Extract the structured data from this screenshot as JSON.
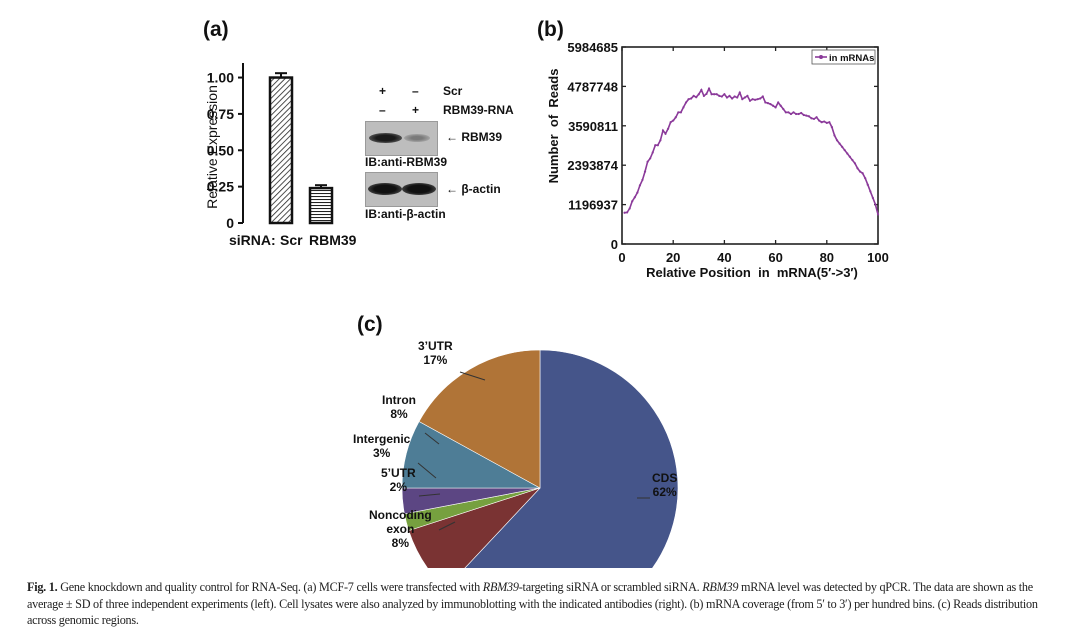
{
  "panels": {
    "a": {
      "label": "(a)",
      "bar_chart": {
        "type": "bar",
        "ylabel": "Relative Expression",
        "xlabel_prefix": "siRNA:",
        "categories": [
          "Scr",
          "RBM39"
        ],
        "values": [
          1.0,
          0.24
        ],
        "errors": [
          0.03,
          0.02
        ],
        "yticks": [
          "0",
          "0.25",
          "0.50",
          "0.75",
          "1.00"
        ],
        "ylim": [
          0,
          1.1
        ],
        "patterns": [
          "diagonal-hatch",
          "horizontal-hatch"
        ]
      },
      "western_blot": {
        "rows": [
          {
            "label": "Scr",
            "lanes": [
              "+",
              "–"
            ]
          },
          {
            "label": "RBM39-RNA",
            "lanes": [
              "–",
              "+"
            ]
          }
        ],
        "blots": [
          {
            "band_label": "← RBM39",
            "ib_label": "IB:anti-RBM39",
            "intensities": [
              1.0,
              0.25
            ]
          },
          {
            "band_label": "← β-actin",
            "ib_label": "IB:anti-β-actin",
            "intensities": [
              1.0,
              1.0
            ]
          }
        ]
      }
    },
    "b": {
      "label": "(b)"
    },
    "c": {
      "label": "(c)"
    }
  },
  "chart_data": [
    {
      "type": "bar",
      "title": "(a)",
      "xlabel": "siRNA: Scr RBM39",
      "ylabel": "Relative Expression",
      "categories": [
        "Scr",
        "RBM39"
      ],
      "values": [
        1.0,
        0.24
      ],
      "errors": [
        0.03,
        0.02
      ],
      "ylim": [
        0,
        1.1
      ],
      "yticks": [
        0,
        0.25,
        0.5,
        0.75,
        1.0
      ]
    },
    {
      "type": "line",
      "title": "(b)",
      "xlabel": "Relative Position  in  mRNA(5′->3′)",
      "ylabel": "Number  of  Reads",
      "xlim": [
        0,
        100
      ],
      "ylim": [
        0,
        5984685
      ],
      "xticks": [
        "0",
        "20",
        "40",
        "60",
        "80",
        "100"
      ],
      "yticks": [
        "0",
        "1196937",
        "2393874",
        "3590811",
        "4787748",
        "5984685"
      ],
      "legend": {
        "entries": [
          "in mRNAs"
        ],
        "placement": "top-right"
      },
      "grid": false,
      "series": [
        {
          "name": "in mRNAs",
          "color": "#8b3a9a",
          "x": [
            1,
            2,
            3,
            4,
            5,
            6,
            7,
            8,
            9,
            10,
            11,
            12,
            13,
            14,
            15,
            16,
            17,
            18,
            19,
            20,
            21,
            22,
            23,
            24,
            25,
            26,
            27,
            28,
            29,
            30,
            31,
            32,
            33,
            34,
            35,
            36,
            37,
            38,
            39,
            40,
            41,
            42,
            43,
            44,
            45,
            46,
            47,
            48,
            49,
            50,
            51,
            52,
            53,
            54,
            55,
            56,
            57,
            58,
            59,
            60,
            61,
            62,
            63,
            64,
            65,
            66,
            67,
            68,
            69,
            70,
            71,
            72,
            73,
            74,
            75,
            76,
            77,
            78,
            79,
            80,
            81,
            82,
            83,
            84,
            85,
            86,
            87,
            88,
            89,
            90,
            91,
            92,
            93,
            94,
            95,
            96,
            97,
            98,
            99,
            100
          ],
          "y": [
            950000,
            960000,
            1080000,
            1300000,
            1420000,
            1560000,
            1780000,
            1950000,
            2200000,
            2500000,
            2600000,
            2780000,
            3000000,
            3000000,
            3150000,
            3450000,
            3350000,
            3500000,
            3700000,
            3750000,
            3850000,
            4000000,
            4000000,
            4150000,
            4300000,
            4400000,
            4420000,
            4500000,
            4460000,
            4550000,
            4680000,
            4500000,
            4560000,
            4720000,
            4550000,
            4550000,
            4550000,
            4500000,
            4480000,
            4550000,
            4450000,
            4500000,
            4420000,
            4480000,
            4450000,
            4600000,
            4400000,
            4450000,
            4500000,
            4350000,
            4400000,
            4380000,
            4400000,
            4420000,
            4480000,
            4300000,
            4280000,
            4250000,
            4200000,
            4150000,
            4300000,
            4200000,
            4100000,
            4000000,
            4000000,
            3950000,
            4000000,
            3950000,
            3950000,
            3980000,
            3920000,
            3900000,
            3880000,
            3820000,
            3800000,
            3850000,
            3750000,
            3700000,
            3720000,
            3680000,
            3700000,
            3550000,
            3300000,
            3150000,
            3050000,
            2950000,
            2850000,
            2750000,
            2650000,
            2550000,
            2450000,
            2300000,
            2200000,
            2150000,
            2000000,
            1800000,
            1600000,
            1400000,
            1200000,
            900000
          ]
        }
      ]
    },
    {
      "type": "pie",
      "title": "(c)",
      "slices": [
        {
          "label": "CDS",
          "value": 62,
          "display": "62%",
          "color": "#45558a"
        },
        {
          "label": "Noncoding exon",
          "value": 8,
          "display": "8%",
          "color": "#7a3333"
        },
        {
          "label": "5′UTR",
          "value": 2,
          "display": "2%",
          "color": "#76a03f"
        },
        {
          "label": "Intergenic",
          "value": 3,
          "display": "3%",
          "color": "#5c4683"
        },
        {
          "label": "Intron",
          "value": 8,
          "display": "8%",
          "color": "#4e7d96"
        },
        {
          "label": "3′UTR",
          "value": 17,
          "display": "17%",
          "color": "#b07437"
        }
      ]
    }
  ],
  "pie_labels": {
    "utr3": {
      "name": "3’UTR",
      "pct": "17%"
    },
    "intron": {
      "name": "Intron",
      "pct": "8%"
    },
    "intergenic": {
      "name": "Intergenic",
      "pct": "3%"
    },
    "utr5": {
      "name": "5’UTR",
      "pct": "2%"
    },
    "noncoding": {
      "name1": "Noncoding",
      "name2": "exon",
      "pct": "8%"
    },
    "cds": {
      "name": "CDS",
      "pct": "62%"
    }
  },
  "caption": {
    "fig_label": "Fig. 1.",
    "part1": " Gene knockdown and quality control for RNA-Seq. (a) MCF-7 cells were transfected with ",
    "gene1": "RBM39",
    "part2": "-targeting siRNA or scrambled siRNA. ",
    "gene2": "RBM39",
    "part3": " mRNA level was detected by qPCR. The data are shown as the average ± SD of three independent experiments (left). Cell lysates were also analyzed by immunoblotting with the indicated antibodies (right). (b) mRNA coverage (from 5′ to 3′) per hundred bins. (c) Reads distribution across genomic regions."
  }
}
